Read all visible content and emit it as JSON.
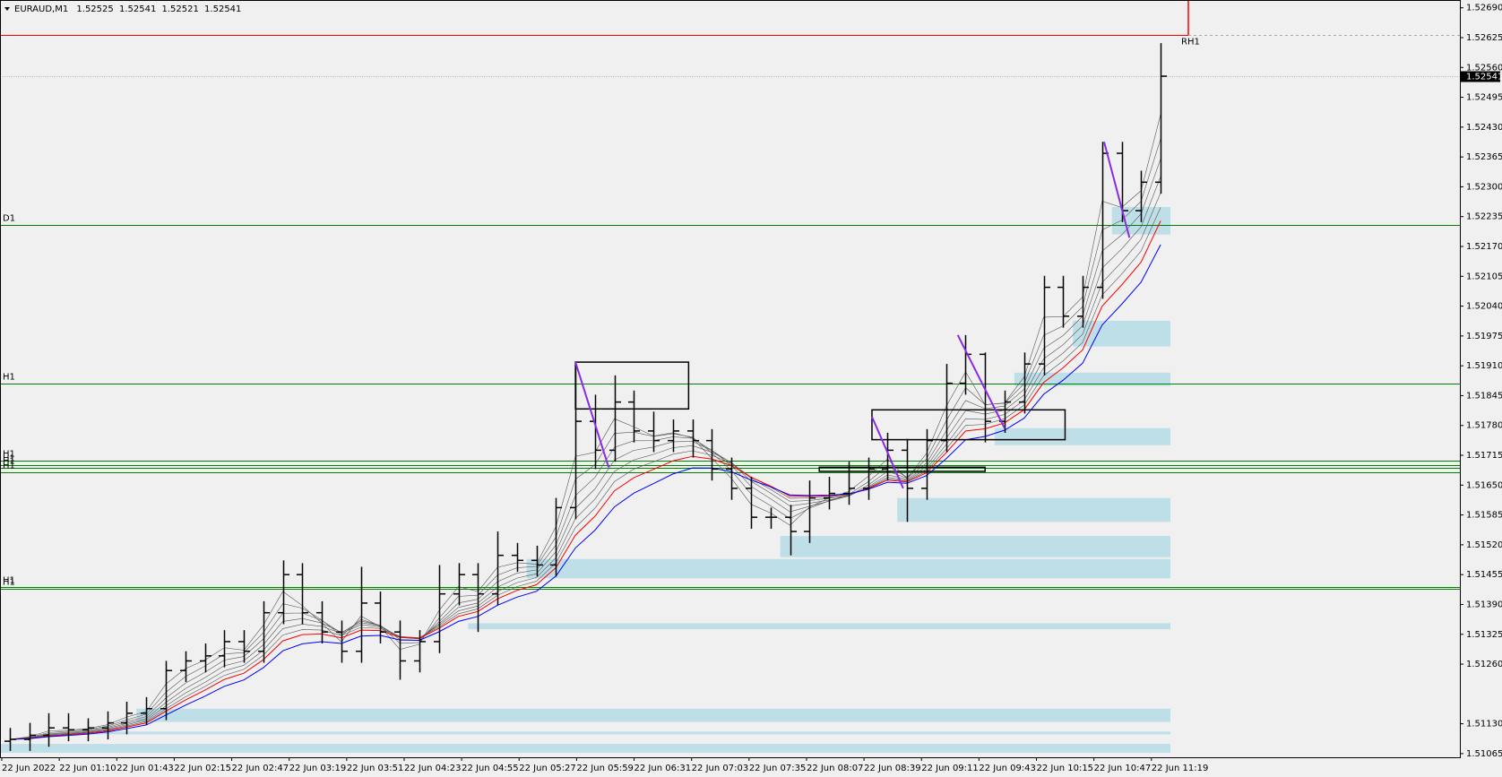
{
  "chart_data": {
    "type": "ohlc",
    "symbol": "EURAUD,M1",
    "quote": [
      1.52525,
      1.52541,
      1.52521,
      1.52541
    ],
    "last_price": 1.52541,
    "ylim": [
      1.51057,
      1.52707
    ],
    "yticks": [
      {
        "value": 1.5269,
        "label": "1.52690"
      },
      1.52625,
      {
        "value": 1.5256,
        "label": "1.52560"
      },
      1.52495,
      {
        "value": 1.5243,
        "label": "1.52430"
      },
      1.52365,
      {
        "value": 1.523,
        "label": "1.52300"
      },
      1.52235,
      {
        "value": 1.5217,
        "label": "1.52170"
      },
      1.52105,
      {
        "value": 1.5204,
        "label": "1.52040"
      },
      1.51975,
      {
        "value": 1.5191,
        "label": "1.51910"
      },
      1.51845,
      {
        "value": 1.5178,
        "label": "1.51780"
      },
      1.51715,
      {
        "value": 1.5165,
        "label": "1.51650"
      },
      1.51585,
      {
        "value": 1.5152,
        "label": "1.51520"
      },
      1.51455,
      {
        "value": 1.5139,
        "label": "1.51390"
      },
      1.51325,
      {
        "value": 1.5126,
        "label": "1.51260"
      },
      {
        "value": 1.5113,
        "label": "1.51130"
      },
      1.51065
    ],
    "x_labels": [
      "22 Jun 2022",
      "22 Jun 01:10",
      "22 Jun 01:43",
      "22 Jun 02:15",
      "22 Jun 02:47",
      "22 Jun 03:19",
      "22 Jun 03:51",
      "22 Jun 04:23",
      "22 Jun 04:55",
      "22 Jun 05:27",
      "22 Jun 05:59",
      "22 Jun 06:31",
      "22 Jun 07:03",
      "22 Jun 07:35",
      "22 Jun 08:07",
      "22 Jun 08:39",
      "22 Jun 09:11",
      "22 Jun 09:43",
      "22 Jun 10:15",
      "22 Jun 10:47",
      "22 Jun 11:19"
    ],
    "bar_color": "#000000",
    "bars": [
      [
        1.51092,
        1.51121,
        1.51071,
        1.51096
      ],
      [
        1.51096,
        1.51132,
        1.51071,
        1.51105
      ],
      [
        1.51105,
        1.51153,
        1.5108,
        1.51121
      ],
      [
        1.51121,
        1.51153,
        1.51092,
        1.51117
      ],
      [
        1.51117,
        1.51142,
        1.51092,
        1.51121
      ],
      [
        1.51121,
        1.51157,
        1.51096,
        1.51132
      ],
      [
        1.51132,
        1.51178,
        1.51107,
        1.51153
      ],
      [
        1.51153,
        1.51188,
        1.51128,
        1.51163
      ],
      [
        1.51163,
        1.51267,
        1.51138,
        1.51246
      ],
      [
        1.51246,
        1.51288,
        1.51221,
        1.51267
      ],
      [
        1.51267,
        1.51305,
        1.51242,
        1.51278
      ],
      [
        1.51278,
        1.51334,
        1.51253,
        1.51309
      ],
      [
        1.51309,
        1.51334,
        1.51263,
        1.51288
      ],
      [
        1.51288,
        1.51397,
        1.51263,
        1.51372
      ],
      [
        1.51372,
        1.51486,
        1.51347,
        1.51455
      ],
      [
        1.51455,
        1.5148,
        1.51347,
        1.51372
      ],
      [
        1.51372,
        1.51397,
        1.51305,
        1.5133
      ],
      [
        1.5133,
        1.51355,
        1.51263,
        1.51288
      ],
      [
        1.51288,
        1.51472,
        1.51263,
        1.51393
      ],
      [
        1.51393,
        1.51418,
        1.51305,
        1.5133
      ],
      [
        1.5133,
        1.51355,
        1.51226,
        1.51267
      ],
      [
        1.51267,
        1.51334,
        1.51242,
        1.51309
      ],
      [
        1.51309,
        1.51476,
        1.51284,
        1.51413
      ],
      [
        1.51413,
        1.5148,
        1.51388,
        1.51455
      ],
      [
        1.51455,
        1.5148,
        1.5133,
        1.51413
      ],
      [
        1.51413,
        1.51549,
        1.51388,
        1.51497
      ],
      [
        1.51497,
        1.51524,
        1.51461,
        1.51486
      ],
      [
        1.51486,
        1.51518,
        1.51451,
        1.51476
      ],
      [
        1.51476,
        1.51622,
        1.51451,
        1.51601
      ],
      [
        1.51601,
        1.51918,
        1.51576,
        1.51789
      ],
      [
        1.51789,
        1.51847,
        1.51685,
        1.51726
      ],
      [
        1.51726,
        1.51889,
        1.51701,
        1.51831
      ],
      [
        1.51831,
        1.51856,
        1.51743,
        1.51768
      ],
      [
        1.51768,
        1.5181,
        1.51722,
        1.51747
      ],
      [
        1.51747,
        1.51793,
        1.51722,
        1.51768
      ],
      [
        1.51768,
        1.51793,
        1.5171,
        1.51747
      ],
      [
        1.51747,
        1.51772,
        1.5166,
        1.51685
      ],
      [
        1.51685,
        1.5171,
        1.51618,
        1.51643
      ],
      [
        1.51643,
        1.51668,
        1.51555,
        1.5158
      ],
      [
        1.5158,
        1.51601,
        1.51555,
        1.5158
      ],
      [
        1.5158,
        1.51607,
        1.51497,
        1.51549
      ],
      [
        1.51549,
        1.5166,
        1.51524,
        1.51622
      ],
      [
        1.51622,
        1.51668,
        1.51597,
        1.51632
      ],
      [
        1.51632,
        1.51701,
        1.51607,
        1.51643
      ],
      [
        1.51643,
        1.5171,
        1.51618,
        1.51685
      ],
      [
        1.51685,
        1.51764,
        1.5166,
        1.51726
      ],
      [
        1.51726,
        1.51751,
        1.5157,
        1.51643
      ],
      [
        1.51643,
        1.51772,
        1.51618,
        1.51747
      ],
      [
        1.51747,
        1.51914,
        1.51722,
        1.51872
      ],
      [
        1.51872,
        1.51977,
        1.51847,
        1.51935
      ],
      [
        1.51935,
        1.51939,
        1.51743,
        1.51789
      ],
      [
        1.51789,
        1.51856,
        1.51764,
        1.51831
      ],
      [
        1.51831,
        1.51939,
        1.51806,
        1.51914
      ],
      [
        1.51914,
        1.52106,
        1.51889,
        1.52081
      ],
      [
        1.52081,
        1.52106,
        1.51993,
        1.52018
      ],
      [
        1.52018,
        1.52106,
        1.51993,
        1.52081
      ],
      [
        1.52081,
        1.52398,
        1.52056,
        1.52373
      ],
      [
        1.52373,
        1.52398,
        1.52223,
        1.52248
      ],
      [
        1.52248,
        1.52335,
        1.52223,
        1.5231
      ],
      [
        1.5231,
        1.52613,
        1.52285,
        1.52541
      ]
    ],
    "moving_averages": [
      {
        "period": 2,
        "color": "#555555"
      },
      {
        "period": 3,
        "color": "#555555"
      },
      {
        "period": 4,
        "color": "#555555"
      },
      {
        "period": 5,
        "color": "#555555"
      },
      {
        "period": 6,
        "color": "#555555"
      },
      {
        "period": 7,
        "color": "#555555"
      },
      {
        "period": 8,
        "color": "#ff0000"
      },
      {
        "period": 10,
        "color": "#0000ff"
      }
    ],
    "zone_color": "#add8e6",
    "zones": [
      {
        "start": 57,
        "high": 1.52256,
        "low": 1.52196
      },
      {
        "start": 55,
        "high": 1.52008,
        "low": 1.51952
      },
      {
        "start": 52,
        "high": 1.51895,
        "low": 1.51866
      },
      {
        "start": 51,
        "high": 1.51774,
        "low": 1.51737
      },
      {
        "start": 46,
        "high": 1.51622,
        "low": 1.5157
      },
      {
        "start": 40,
        "high": 1.51539,
        "low": 1.51493
      },
      {
        "start": 27,
        "high": 1.51489,
        "low": 1.51447
      },
      {
        "start": 24,
        "high": 1.51349,
        "low": 1.51336
      },
      {
        "start": 7,
        "high": 1.51163,
        "low": 1.51134
      },
      {
        "start": 4,
        "high": 1.51113,
        "low": 1.51107
      },
      {
        "start": 0,
        "high": 1.51086,
        "low": 1.51067
      }
    ],
    "rectangles": [
      {
        "start": 29.5,
        "end": 35.3,
        "high": 1.51918,
        "low": 1.51816
      },
      {
        "start": 44.7,
        "end": 54.6,
        "high": 1.51814,
        "low": 1.51749
      },
      {
        "start": 42,
        "end": 50.5,
        "high": 1.51689,
        "low": 1.5168
      }
    ],
    "trendline_color": "#8a2be2",
    "trendlines": [
      [
        29.5,
        1.51918,
        31.2,
        1.51689
      ],
      [
        44.7,
        1.51799,
        46.3,
        1.51643
      ],
      [
        49.1,
        1.51977,
        51.5,
        1.51774
      ],
      [
        56.6,
        1.52398,
        57.9,
        1.52189
      ]
    ],
    "levels": [
      {
        "label": "RH1",
        "value": 1.5263,
        "color": "#ff0000",
        "label_position": "right"
      },
      {
        "label": "D1",
        "value": 1.52217,
        "color": "#008000",
        "label_position": "left"
      },
      {
        "label": "H1",
        "value": 1.51872,
        "color": "#008000",
        "label_position": "left"
      },
      {
        "label": "H1",
        "value": 1.51703,
        "color": "#008000",
        "label_position": "left"
      },
      {
        "label": "H1",
        "value": 1.51694,
        "color": "#008000",
        "label_position": "left"
      },
      {
        "label": "H1",
        "value": 1.51687,
        "color": "#008000",
        "label_position": "left"
      },
      {
        "label": "H1",
        "value": 1.51678,
        "color": "#008000",
        "label_position": "left"
      },
      {
        "label": "H1",
        "value": 1.51428,
        "color": "#008000",
        "label_position": "left"
      },
      {
        "label": "H1",
        "value": 1.51424,
        "color": "#008000",
        "label_position": "left"
      }
    ]
  }
}
